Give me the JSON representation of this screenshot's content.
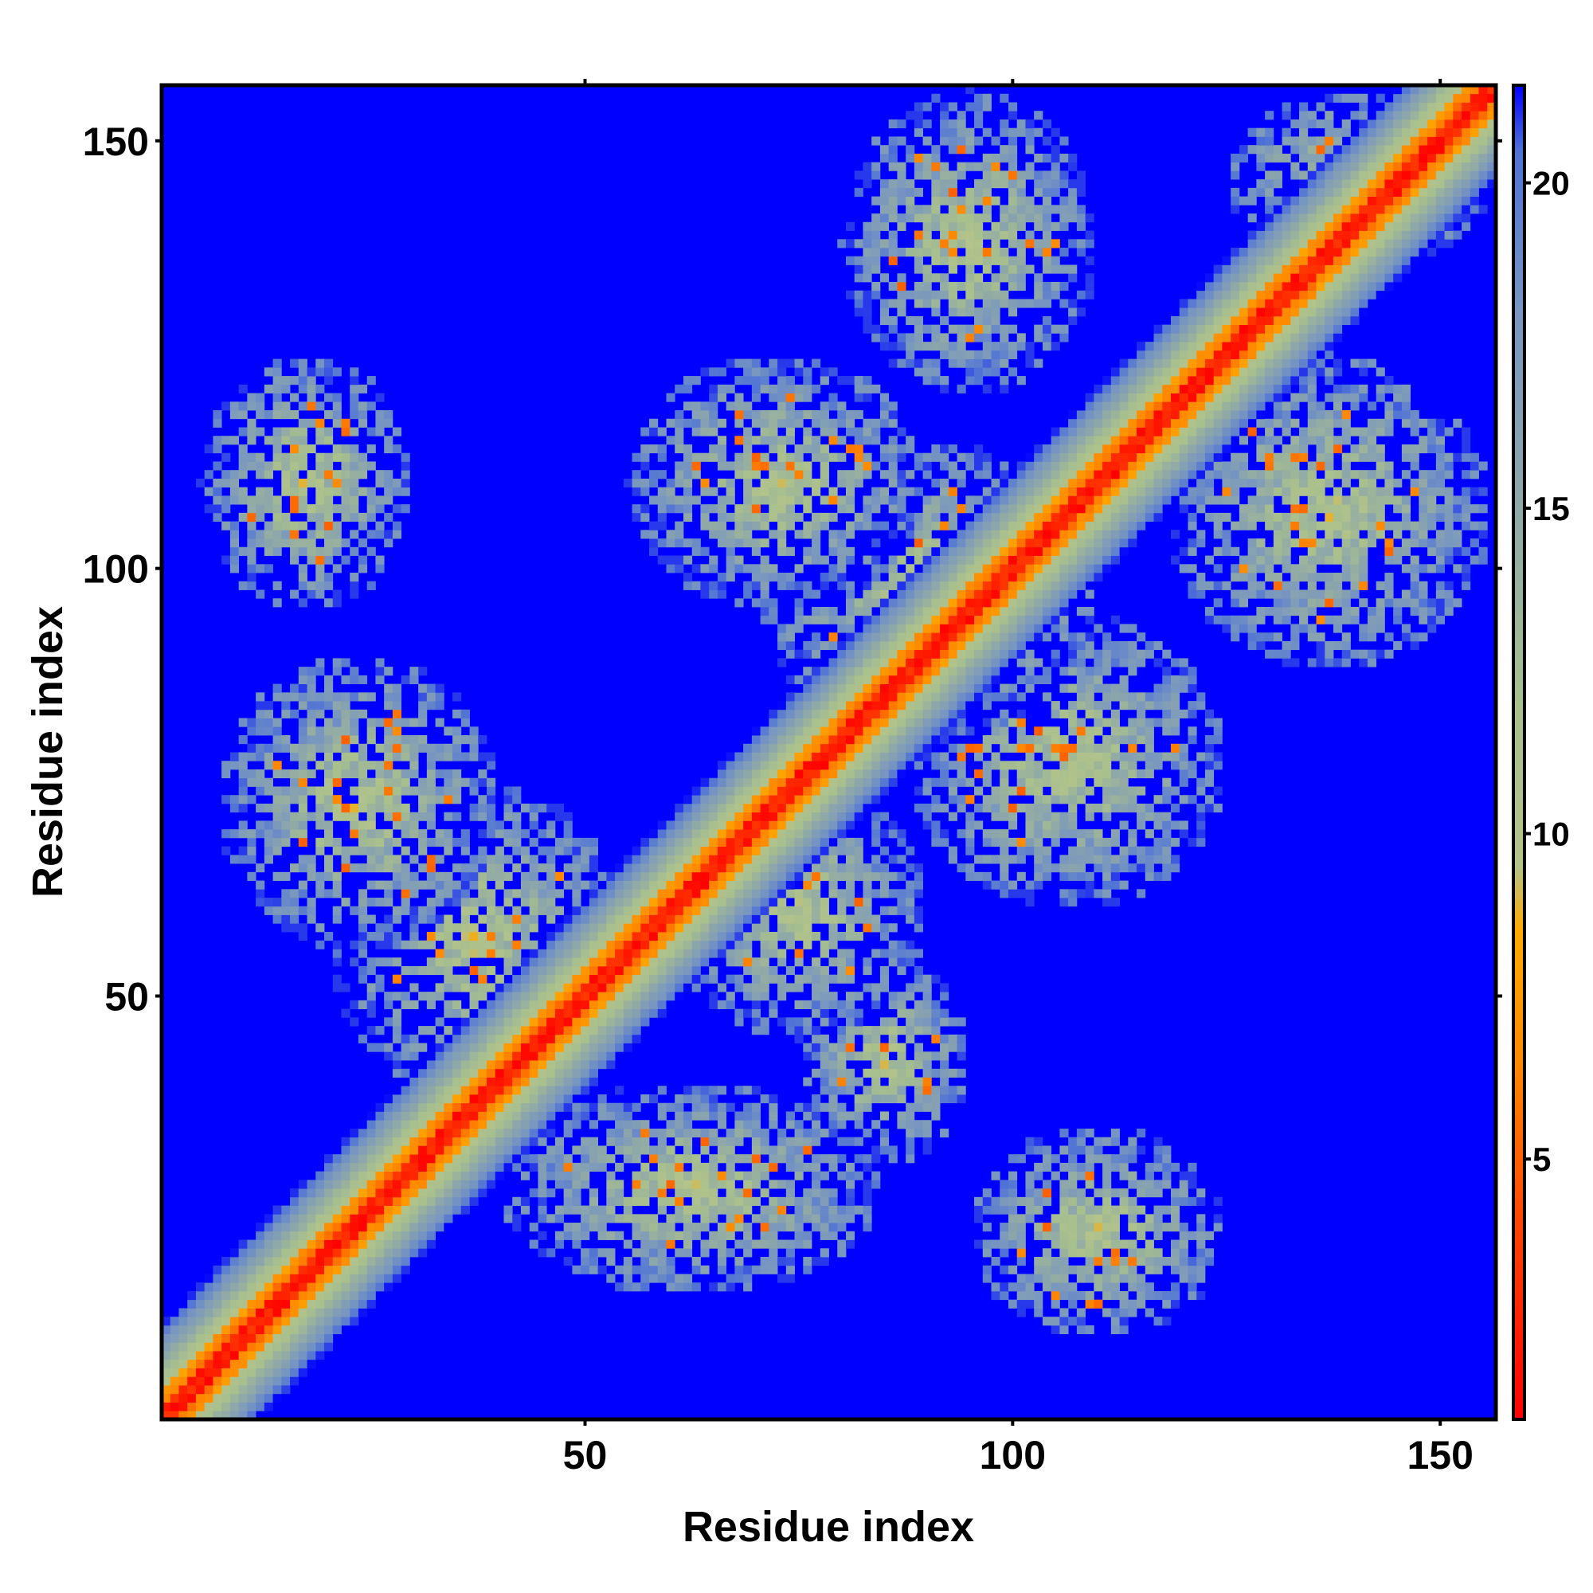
{
  "chart_data": {
    "type": "heatmap",
    "title": "",
    "xlabel": "Residue index",
    "ylabel": "Residue index",
    "xlim": [
      1,
      156
    ],
    "ylim": [
      1,
      156
    ],
    "xticks": [
      50,
      100,
      150
    ],
    "yticks": [
      50,
      100,
      150
    ],
    "colorbar": {
      "range": [
        1,
        21.5
      ],
      "ticks": [
        5,
        10,
        15,
        20
      ],
      "stops": [
        {
          "value": 1,
          "color": "#ff0000"
        },
        {
          "value": 4,
          "color": "#ff4400"
        },
        {
          "value": 6.5,
          "color": "#ff8800"
        },
        {
          "value": 8.5,
          "color": "#ffaa00"
        },
        {
          "value": 9.5,
          "color": "#b4c38a"
        },
        {
          "value": 12,
          "color": "#a8bf8e"
        },
        {
          "value": 15,
          "color": "#8fa8a8"
        },
        {
          "value": 18,
          "color": "#7896c0"
        },
        {
          "value": 20.5,
          "color": "#4f72d6"
        },
        {
          "value": 21.5,
          "color": "#0000ff"
        }
      ]
    },
    "max_value": 21.5,
    "diagonal_band": {
      "red_width": 3,
      "band_width": 11
    },
    "contact_regions": [
      {
        "x": [
          5,
          30
        ],
        "y": [
          95,
          125
        ]
      },
      {
        "x": [
          7,
          40
        ],
        "y": [
          55,
          90
        ]
      },
      {
        "x": [
          20,
          55
        ],
        "y": [
          38,
          75
        ]
      },
      {
        "x": [
          40,
          85
        ],
        "y": [
          15,
          40
        ]
      },
      {
        "x": [
          60,
          90
        ],
        "y": [
          45,
          75
        ]
      },
      {
        "x": [
          55,
          90
        ],
        "y": [
          95,
          125
        ]
      },
      {
        "x": [
          70,
          110
        ],
        "y": [
          80,
          115
        ]
      },
      {
        "x": [
          88,
          125
        ],
        "y": [
          60,
          95
        ]
      },
      {
        "x": [
          95,
          125
        ],
        "y": [
          10,
          35
        ]
      },
      {
        "x": [
          80,
          110
        ],
        "y": [
          120,
          156
        ]
      },
      {
        "x": [
          118,
          156
        ],
        "y": [
          88,
          125
        ]
      },
      {
        "x": [
          125,
          156
        ],
        "y": [
          135,
          156
        ]
      },
      {
        "x": [
          75,
          95
        ],
        "y": [
          30,
          55
        ]
      }
    ]
  }
}
